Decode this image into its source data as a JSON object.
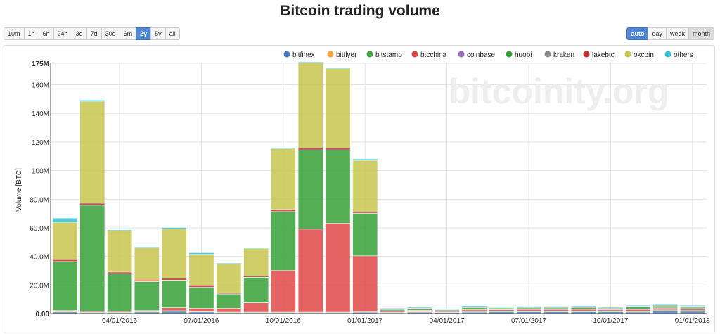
{
  "title": "Bitcoin trading volume",
  "range_buttons": [
    {
      "label": "10m",
      "active": false
    },
    {
      "label": "1h",
      "active": false
    },
    {
      "label": "6h",
      "active": false
    },
    {
      "label": "24h",
      "active": false
    },
    {
      "label": "3d",
      "active": false
    },
    {
      "label": "7d",
      "active": false
    },
    {
      "label": "30d",
      "active": false
    },
    {
      "label": "6m",
      "active": false
    },
    {
      "label": "2y",
      "active": true
    },
    {
      "label": "5y",
      "active": false
    },
    {
      "label": "all",
      "active": false
    }
  ],
  "interval_buttons": [
    {
      "label": "auto",
      "active": true
    },
    {
      "label": "day",
      "active": false
    },
    {
      "label": "week",
      "active": false
    },
    {
      "label": "month",
      "active": false,
      "pressed": true
    }
  ],
  "watermark": "bitcoinity.org",
  "chart_data": {
    "type": "bar",
    "stacked": true,
    "ylabel": "Volume [BTC]",
    "ylim": [
      0,
      175000000
    ],
    "y_ticks": [
      "0.00",
      "20.0M",
      "40.0M",
      "60.0M",
      "80.0M",
      "100M",
      "120M",
      "140M",
      "160M",
      "175M"
    ],
    "y_tick_values": [
      0,
      20000000,
      40000000,
      60000000,
      80000000,
      100000000,
      120000000,
      140000000,
      160000000,
      175000000
    ],
    "x_ticks": [
      "04/01/2016",
      "07/01/2016",
      "10/01/2016",
      "01/01/2017",
      "04/01/2017",
      "07/01/2017",
      "10/01/2017",
      "01/01/2018"
    ],
    "x_tick_at": [
      2.5,
      5.5,
      8.5,
      11.5,
      14.5,
      17.5,
      20.5,
      23.5
    ],
    "categories": [
      "2016-01",
      "2016-02",
      "2016-03",
      "2016-04",
      "2016-05",
      "2016-06",
      "2016-07",
      "2016-08",
      "2016-09",
      "2016-10",
      "2016-11",
      "2016-12",
      "2017-01",
      "2017-02",
      "2017-03",
      "2017-04",
      "2017-05",
      "2017-06",
      "2017-07",
      "2017-08",
      "2017-09",
      "2017-10",
      "2017-11",
      "2017-12"
    ],
    "grid": true,
    "legend_position": "top-right",
    "series": [
      {
        "name": "bitfinex",
        "color": "#4a7cc4",
        "values": [
          1000000,
          500000,
          500000,
          1000000,
          1500000,
          1000000,
          500000,
          500000,
          500000,
          500000,
          500000,
          800000,
          500000,
          900000,
          700000,
          900000,
          1200000,
          1200000,
          1200000,
          1200000,
          1200000,
          1000000,
          1800000,
          1500000
        ]
      },
      {
        "name": "bitflyer",
        "color": "#f4a13a",
        "values": [
          200000,
          200000,
          200000,
          200000,
          200000,
          200000,
          200000,
          200000,
          200000,
          200000,
          200000,
          200000,
          200000,
          200000,
          200000,
          300000,
          300000,
          300000,
          300000,
          300000,
          300000,
          300000,
          400000,
          400000
        ]
      },
      {
        "name": "bitstamp",
        "color": "#45a845",
        "values": [
          300000,
          300000,
          300000,
          300000,
          300000,
          300000,
          300000,
          300000,
          300000,
          300000,
          300000,
          300000,
          300000,
          300000,
          300000,
          400000,
          400000,
          400000,
          400000,
          400000,
          400000,
          400000,
          500000,
          500000
        ]
      },
      {
        "name": "btcchina",
        "color": "#e04646",
        "values": [
          500000,
          500000,
          500000,
          500000,
          2000000,
          2000000,
          2500000,
          6500000,
          29000000,
          58000000,
          62000000,
          39000000,
          800000,
          800000,
          500000,
          900000,
          700000,
          800000,
          800000,
          900000,
          600000,
          1000000,
          1000000,
          800000
        ]
      },
      {
        "name": "coinbase",
        "color": "#9b6fbf",
        "values": [
          200000,
          200000,
          200000,
          200000,
          200000,
          200000,
          200000,
          200000,
          200000,
          200000,
          200000,
          200000,
          200000,
          200000,
          200000,
          300000,
          300000,
          300000,
          300000,
          300000,
          300000,
          300000,
          400000,
          400000
        ]
      },
      {
        "name": "huobi",
        "color": "#36a136",
        "values": [
          34000000,
          74000000,
          26000000,
          20000000,
          19000000,
          14500000,
          10000000,
          17500000,
          41000000,
          55000000,
          51000000,
          29500000,
          700000,
          1000000,
          400000,
          1200000,
          800000,
          900000,
          900000,
          1000000,
          600000,
          1500000,
          1200000,
          800000
        ]
      },
      {
        "name": "kraken",
        "color": "#8a8a8a",
        "values": [
          300000,
          300000,
          300000,
          300000,
          300000,
          300000,
          300000,
          300000,
          300000,
          300000,
          300000,
          300000,
          300000,
          300000,
          300000,
          400000,
          400000,
          400000,
          400000,
          400000,
          400000,
          400000,
          500000,
          500000
        ]
      },
      {
        "name": "lakebtc",
        "color": "#c53030",
        "values": [
          1200000,
          1200000,
          1000000,
          1000000,
          1200000,
          1000000,
          700000,
          700000,
          1300000,
          1300000,
          1300000,
          800000,
          200000,
          200000,
          200000,
          200000,
          200000,
          200000,
          200000,
          200000,
          200000,
          200000,
          200000,
          200000
        ]
      },
      {
        "name": "okcoin",
        "color": "#c8c64e",
        "values": [
          26000000,
          71000000,
          29000000,
          22500000,
          34500000,
          22000000,
          20000000,
          19500000,
          42500000,
          59500000,
          55500000,
          36000000,
          100000,
          100000,
          100000,
          100000,
          100000,
          100000,
          100000,
          100000,
          100000,
          100000,
          100000,
          100000
        ]
      },
      {
        "name": "others",
        "color": "#38c2d6",
        "values": [
          3000000,
          1000000,
          500000,
          500000,
          1000000,
          1000000,
          500000,
          500000,
          500000,
          500000,
          500000,
          1000000,
          400000,
          500000,
          400000,
          700000,
          500000,
          500000,
          500000,
          500000,
          400000,
          500000,
          700000,
          500000
        ]
      }
    ]
  }
}
